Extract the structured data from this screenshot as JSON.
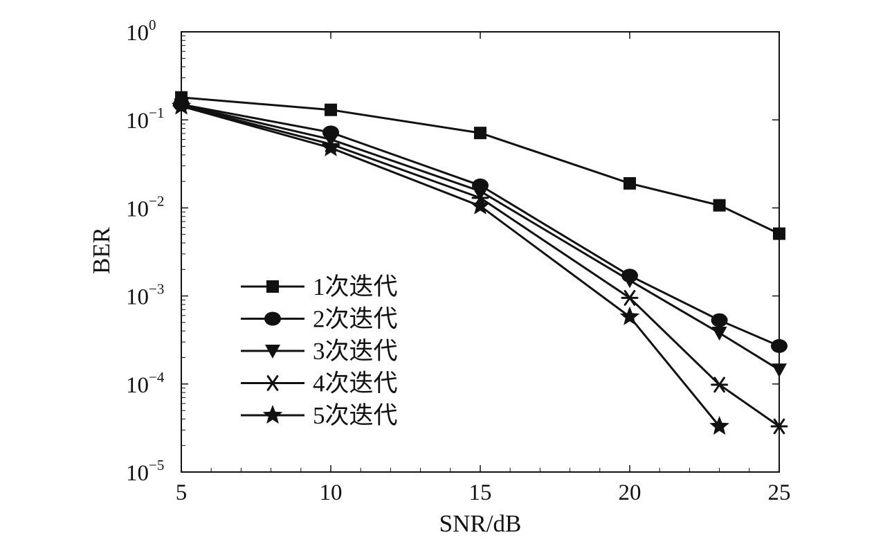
{
  "chart_data": {
    "type": "line",
    "title": "",
    "xlabel": "SNR/dB",
    "ylabel": "BER",
    "x_scale": "linear",
    "y_scale": "log",
    "xlim": [
      5,
      25
    ],
    "ylim": [
      1e-05,
      1
    ],
    "x_ticks": [
      5,
      10,
      15,
      20,
      25
    ],
    "y_ticks": [
      {
        "base": "10",
        "exp": "0",
        "value": 1
      },
      {
        "base": "10",
        "exp": "−1",
        "value": 0.1
      },
      {
        "base": "10",
        "exp": "−2",
        "value": 0.01
      },
      {
        "base": "10",
        "exp": "−3",
        "value": 0.001
      },
      {
        "base": "10",
        "exp": "−4",
        "value": 0.0001
      },
      {
        "base": "10",
        "exp": "−5",
        "value": 1e-05
      }
    ],
    "grid": false,
    "legend_position": "bottom-left",
    "series": [
      {
        "name": "1次迭代",
        "marker": "square",
        "x": [
          5,
          10,
          15,
          20,
          23,
          25
        ],
        "y": [
          0.18,
          0.13,
          0.071,
          0.019,
          0.0107,
          0.0051
        ]
      },
      {
        "name": "2次迭代",
        "marker": "circle",
        "x": [
          5,
          10,
          15,
          20,
          23,
          25
        ],
        "y": [
          0.15,
          0.072,
          0.018,
          0.0017,
          0.00053,
          0.00027
        ]
      },
      {
        "name": "3次迭代",
        "marker": "triangle-down",
        "x": [
          5,
          10,
          15,
          20,
          23,
          25
        ],
        "y": [
          0.148,
          0.06,
          0.0155,
          0.0015,
          0.00038,
          0.000145
        ]
      },
      {
        "name": "4次迭代",
        "marker": "asterisk",
        "x": [
          5,
          10,
          15,
          20,
          23,
          25
        ],
        "y": [
          0.145,
          0.053,
          0.013,
          0.00095,
          9.8e-05,
          3.3e-05
        ]
      },
      {
        "name": "5次迭代",
        "marker": "star",
        "x": [
          5,
          10,
          15,
          20,
          23
        ],
        "y": [
          0.143,
          0.048,
          0.0105,
          0.00058,
          3.3e-05
        ]
      }
    ]
  }
}
